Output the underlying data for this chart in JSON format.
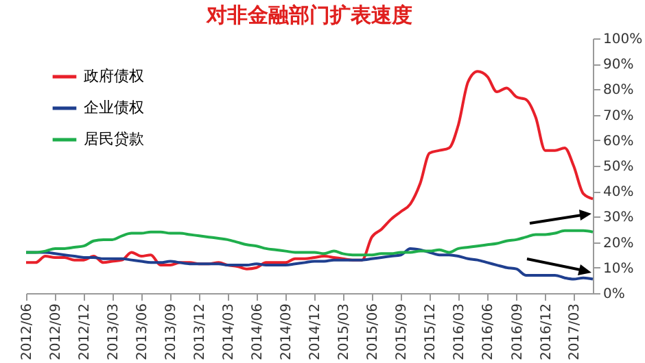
{
  "chart_data": {
    "type": "line",
    "title": "对非金融部门扩表速度",
    "x": [
      "2012-06",
      "2012-07",
      "2012-08",
      "2012-09",
      "2012-10",
      "2012-11",
      "2012-12",
      "2013-01",
      "2013-02",
      "2013-03",
      "2013-04",
      "2013-05",
      "2013-06",
      "2013-07",
      "2013-08",
      "2013-09",
      "2013-10",
      "2013-11",
      "2013-12",
      "2014-01",
      "2014-02",
      "2014-03",
      "2014-04",
      "2014-05",
      "2014-06",
      "2014-07",
      "2014-08",
      "2014-09",
      "2014-10",
      "2014-11",
      "2014-12",
      "2015-01",
      "2015-02",
      "2015-03",
      "2015-04",
      "2015-05",
      "2015-06",
      "2015-07",
      "2015-08",
      "2015-09",
      "2015-10",
      "2015-11",
      "2015-12",
      "2016-01",
      "2016-02",
      "2016-03",
      "2016-04",
      "2016-05",
      "2016-06",
      "2016-07",
      "2016-08",
      "2016-09",
      "2016-10",
      "2016-11",
      "2016-12",
      "2017-01",
      "2017-02",
      "2017-03",
      "2017-04",
      "2017-05"
    ],
    "series": [
      {
        "name": "政府债权",
        "color": "#e8202a",
        "values": [
          12,
          12,
          14.5,
          14,
          14,
          13,
          13,
          14.5,
          12,
          12.5,
          13,
          16,
          14.5,
          15,
          11,
          11,
          12,
          12,
          11.5,
          11.5,
          12,
          11,
          10.5,
          9.5,
          10,
          12,
          12,
          12,
          13.5,
          13.5,
          14,
          14.5,
          14,
          13.5,
          13,
          13,
          22,
          25,
          29,
          32,
          35,
          43,
          55,
          56,
          57,
          66,
          83,
          87,
          85,
          79,
          80.5,
          77,
          76,
          69,
          56,
          56,
          57,
          50,
          39,
          37
        ]
      },
      {
        "name": "企业债权",
        "color": "#1f3f8f",
        "values": [
          16,
          16,
          16,
          15.5,
          15,
          14.5,
          14,
          14,
          13.5,
          13.5,
          13.5,
          13,
          12.5,
          12,
          12,
          12.5,
          12,
          11.5,
          11.5,
          11.5,
          11.5,
          11,
          11,
          11,
          11.5,
          11,
          11,
          11,
          11.5,
          12,
          12.5,
          12.5,
          13,
          13,
          13,
          13,
          13.5,
          14,
          14.5,
          15,
          17.5,
          17,
          16,
          15,
          15,
          14.5,
          13.5,
          13,
          12,
          11,
          10,
          9.5,
          7,
          7,
          7,
          7,
          6,
          5.5,
          6,
          5.5
        ]
      },
      {
        "name": "居民贷款",
        "color": "#1fae4c",
        "values": [
          16,
          16,
          16.5,
          17.5,
          17.5,
          18,
          18.5,
          20.5,
          21,
          21,
          22.5,
          23.5,
          23.5,
          24,
          24,
          23.5,
          23.5,
          23,
          22.5,
          22,
          21.5,
          21,
          20,
          19,
          18.5,
          17.5,
          17,
          16.5,
          16,
          16,
          16,
          15.5,
          16.5,
          15.5,
          15,
          15,
          15,
          15.5,
          15.5,
          16,
          16,
          16.5,
          16.5,
          17,
          16,
          17.5,
          18,
          18.5,
          19,
          19.5,
          20.5,
          21,
          22,
          23,
          23,
          23.5,
          24.5,
          24.5,
          24.5,
          24
        ]
      }
    ],
    "xlim": [
      "2012-06",
      "2017-05"
    ],
    "xticks": [
      {
        "value": "2012-06",
        "label": "2012/06"
      },
      {
        "value": "2012-09",
        "label": "2012/09"
      },
      {
        "value": "2012-12",
        "label": "2012/12"
      },
      {
        "value": "2013-03",
        "label": "2013/03"
      },
      {
        "value": "2013-06",
        "label": "2013/06"
      },
      {
        "value": "2013-09",
        "label": "2013/09"
      },
      {
        "value": "2013-12",
        "label": "2013/12"
      },
      {
        "value": "2014-03",
        "label": "2014/03"
      },
      {
        "value": "2014-06",
        "label": "2014/06"
      },
      {
        "value": "2014-09",
        "label": "2014/09"
      },
      {
        "value": "2014-12",
        "label": "2014/12"
      },
      {
        "value": "2015-03",
        "label": "2015/03"
      },
      {
        "value": "2015-06",
        "label": "2015/06"
      },
      {
        "value": "2015-09",
        "label": "2015/09"
      },
      {
        "value": "2015-12",
        "label": "2015/12"
      },
      {
        "value": "2016-03",
        "label": "2016/03"
      },
      {
        "value": "2016-06",
        "label": "2016/06"
      },
      {
        "value": "2016-09",
        "label": "2016/09"
      },
      {
        "value": "2016-12",
        "label": "2016/12"
      },
      {
        "value": "2017-03",
        "label": "2017/03"
      }
    ],
    "ylim": [
      0,
      100
    ],
    "yticks": [
      {
        "value": 0,
        "label": "0%"
      },
      {
        "value": 10,
        "label": "10%"
      },
      {
        "value": 20,
        "label": "20%"
      },
      {
        "value": 30,
        "label": "30%"
      },
      {
        "value": 40,
        "label": "40%"
      },
      {
        "value": 50,
        "label": "50%"
      },
      {
        "value": 60,
        "label": "60%"
      },
      {
        "value": 70,
        "label": "70%"
      },
      {
        "value": 80,
        "label": "80%"
      },
      {
        "value": 90,
        "label": "90%"
      },
      {
        "value": 100,
        "label": "100%"
      }
    ],
    "grid": false,
    "legend": "top left",
    "line_style": "solid"
  }
}
